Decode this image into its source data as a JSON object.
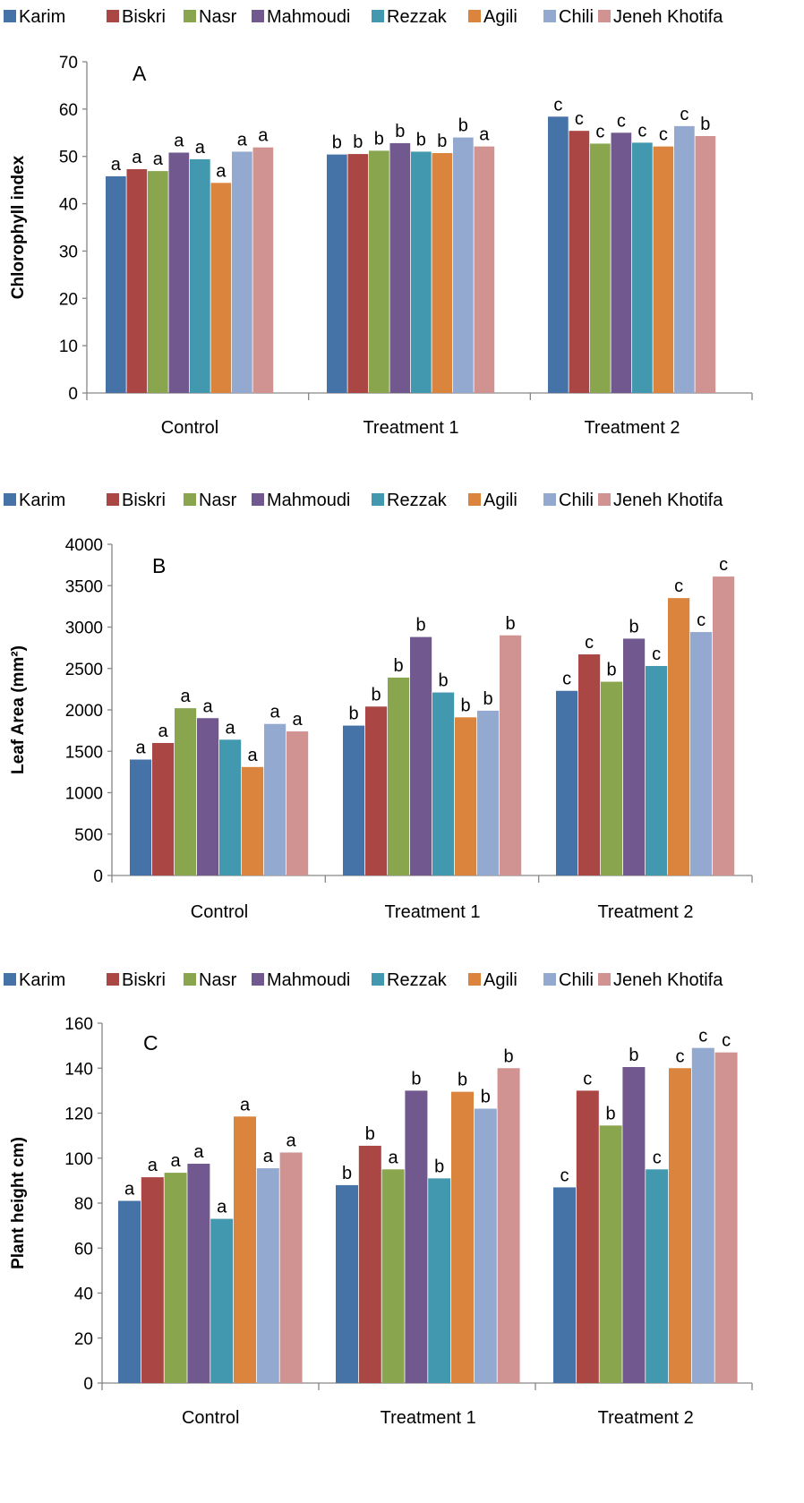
{
  "legend_labels": [
    "Karim",
    "Biskri",
    "Nasr",
    "Mahmoudi",
    "Rezzak",
    "Agili",
    "Chili",
    "Jeneh Khotifa"
  ],
  "series_colors": [
    "#4572A7",
    "#AA4643",
    "#89A54E",
    "#71588F",
    "#4198AF",
    "#DB843D",
    "#93A9CF",
    "#D19392"
  ],
  "axis_color": "#868686",
  "chart_data": [
    {
      "type": "bar",
      "panel_letter": "A",
      "categories": [
        "Control",
        "Treatment 1",
        "Treatment 2"
      ],
      "ylabel": "Chlorophyll index",
      "ylim": [
        0,
        70
      ],
      "yticks": [
        0,
        10,
        20,
        30,
        40,
        50,
        60,
        70
      ],
      "grid": false,
      "legend_position": "top",
      "series": [
        {
          "name": "Karim",
          "values": [
            45.8,
            50.4,
            58.4
          ],
          "letters": [
            "a",
            "b",
            "c"
          ]
        },
        {
          "name": "Biskri",
          "values": [
            47.3,
            50.5,
            55.4
          ],
          "letters": [
            "a",
            "b",
            "c"
          ]
        },
        {
          "name": "Nasr",
          "values": [
            46.9,
            51.2,
            52.7
          ],
          "letters": [
            "a",
            "b",
            "c"
          ]
        },
        {
          "name": "Mahmoudi",
          "values": [
            50.8,
            52.8,
            55.0
          ],
          "letters": [
            "a",
            "b",
            "c"
          ]
        },
        {
          "name": "Rezzak",
          "values": [
            49.4,
            51.0,
            52.9
          ],
          "letters": [
            "a",
            "b",
            "c"
          ]
        },
        {
          "name": "Agili",
          "values": [
            44.4,
            50.7,
            52.1
          ],
          "letters": [
            "a",
            "b",
            "c"
          ]
        },
        {
          "name": "Chili",
          "values": [
            51.0,
            54.0,
            56.4
          ],
          "letters": [
            "a",
            "b",
            "c"
          ]
        },
        {
          "name": "Jeneh Khotifa",
          "values": [
            51.9,
            52.1,
            54.3
          ],
          "letters": [
            "a",
            "a",
            "b"
          ]
        }
      ]
    },
    {
      "type": "bar",
      "panel_letter": "B",
      "categories": [
        "Control",
        "Treatment 1",
        "Treatment 2"
      ],
      "ylabel": "Leaf Area (mm²)",
      "ylim": [
        0,
        4000
      ],
      "yticks": [
        0,
        500,
        1000,
        1500,
        2000,
        2500,
        3000,
        3500,
        4000
      ],
      "grid": false,
      "legend_position": "top",
      "series": [
        {
          "name": "Karim",
          "values": [
            1400,
            1810,
            2230
          ],
          "letters": [
            "a",
            "b",
            "c"
          ]
        },
        {
          "name": "Biskri",
          "values": [
            1600,
            2040,
            2670
          ],
          "letters": [
            "a",
            "b",
            "c"
          ]
        },
        {
          "name": "Nasr",
          "values": [
            2020,
            2390,
            2340
          ],
          "letters": [
            "a",
            "b",
            "b"
          ]
        },
        {
          "name": "Mahmoudi",
          "values": [
            1900,
            2880,
            2860
          ],
          "letters": [
            "a",
            "b",
            "b"
          ]
        },
        {
          "name": "Rezzak",
          "values": [
            1640,
            2210,
            2530
          ],
          "letters": [
            "a",
            "b",
            "c"
          ]
        },
        {
          "name": "Agili",
          "values": [
            1310,
            1910,
            3350
          ],
          "letters": [
            "a",
            "b",
            "c"
          ]
        },
        {
          "name": "Chili",
          "values": [
            1830,
            1990,
            2940
          ],
          "letters": [
            "a",
            "b",
            "c"
          ]
        },
        {
          "name": "Jeneh Khotifa",
          "values": [
            1740,
            2900,
            3610
          ],
          "letters": [
            "a",
            "b",
            "c"
          ]
        }
      ]
    },
    {
      "type": "bar",
      "panel_letter": "C",
      "categories": [
        "Control",
        "Treatment 1",
        "Treatment 2"
      ],
      "ylabel": "Plant height cm)",
      "ylim": [
        0,
        160
      ],
      "yticks": [
        0,
        20,
        40,
        60,
        80,
        100,
        120,
        140,
        160
      ],
      "grid": false,
      "legend_position": "top",
      "series": [
        {
          "name": "Karim",
          "values": [
            81,
            88,
            87
          ],
          "letters": [
            "a",
            "b",
            "c"
          ]
        },
        {
          "name": "Biskri",
          "values": [
            91.5,
            105.5,
            130
          ],
          "letters": [
            "a",
            "b",
            "c"
          ]
        },
        {
          "name": "Nasr",
          "values": [
            93.5,
            95,
            114.5
          ],
          "letters": [
            "a",
            "a",
            "b"
          ]
        },
        {
          "name": "Mahmoudi",
          "values": [
            97.5,
            130,
            140.5
          ],
          "letters": [
            "a",
            "b",
            "b"
          ]
        },
        {
          "name": "Rezzak",
          "values": [
            73,
            91,
            95
          ],
          "letters": [
            "a",
            "b",
            "c"
          ]
        },
        {
          "name": "Agili",
          "values": [
            118.5,
            129.5,
            140
          ],
          "letters": [
            "a",
            "b",
            "c"
          ]
        },
        {
          "name": "Chili",
          "values": [
            95.5,
            122,
            149
          ],
          "letters": [
            "a",
            "b",
            "c"
          ]
        },
        {
          "name": "Jeneh Khotifa",
          "values": [
            102.5,
            140,
            147
          ],
          "letters": [
            "a",
            "b",
            "c"
          ]
        }
      ]
    }
  ]
}
